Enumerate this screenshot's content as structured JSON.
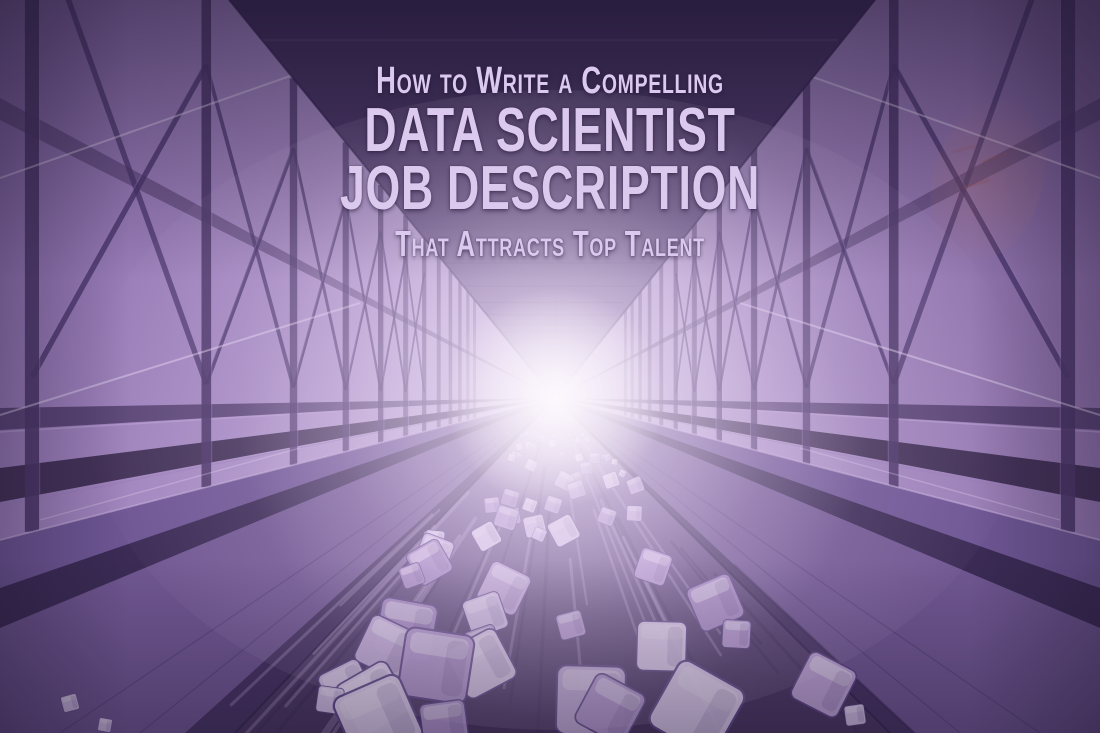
{
  "hero": {
    "line1": "How to Write a Compelling",
    "line2": "DATA SCIENTIST",
    "line3": "JOB DESCRIPTION",
    "line4": "That Attracts Top Talent"
  },
  "scene": {
    "description": "Monochrome purple corridor of glass truss walls receding to a bright glowing vanishing point, with a blurred stream of data cubes rushing along the floor toward the viewer",
    "colors": {
      "backdrop": "#6e5590",
      "wall_near": "#8a6dab",
      "wall_far": "#d2bfe2",
      "frame": "#4c3769",
      "ceiling_dark": "#3a2a54",
      "floor_dark": "#453459",
      "channel": "#55416f",
      "walkway": "#705791",
      "skirt_dark": "#3b2b55",
      "glow_core": "#fcf8fd",
      "glow_halo": "#f3e9f8",
      "cube_light": "#d9c6ea",
      "cube_mid": "#b89cd2",
      "title_text": "#dcc9ee",
      "warm_reflection": "#c67d6a"
    }
  }
}
